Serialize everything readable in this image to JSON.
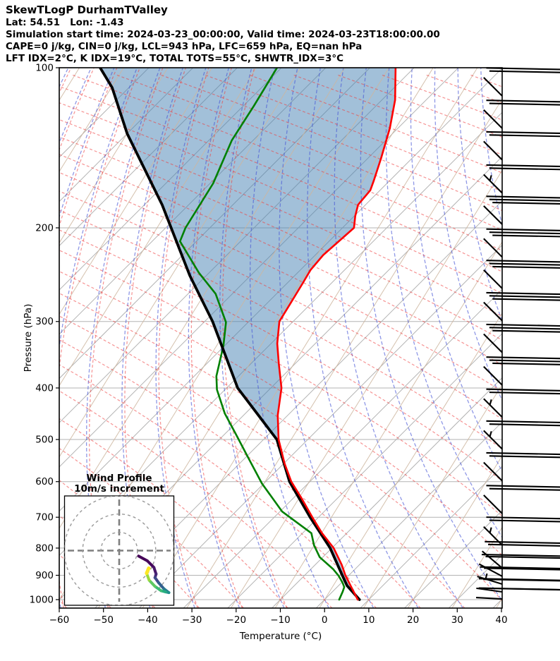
{
  "header": {
    "title": "SkewTLogP DurhamTValley",
    "latlon": "Lat: 54.51   Lon: -1.43",
    "time_line": "Simulation start time: 2024-03-23_00:00:00, Valid time: 2024-03-23T18:00:00.00",
    "indices_line1": "CAPE=0 j/kg, CIN=0 j/kg, LCL=943 hPa, LFC=659 hPa, EQ=nan hPa",
    "indices_line2": "LFT IDX=2°C, K IDX=19°C, TOTAL TOTS=55°C, SHWTR_IDX=3°C"
  },
  "chart_data": {
    "type": "line",
    "subtype": "skewT-logP",
    "xlabel": "Temperature (°C)",
    "ylabel": "Pressure (hPa)",
    "xlim": [
      -60,
      40
    ],
    "ylim_hpa": [
      100,
      1043
    ],
    "xticks": [
      -60,
      -50,
      -40,
      -30,
      -20,
      -10,
      0,
      10,
      20,
      30,
      40
    ],
    "xtick_labels": [
      "−60",
      "−50",
      "−40",
      "−30",
      "−20",
      "−10",
      "0",
      "10",
      "20",
      "30",
      "40"
    ],
    "yticks": [
      100,
      200,
      300,
      400,
      500,
      600,
      700,
      800,
      900,
      1000
    ],
    "ytick_labels": [
      "100",
      "200",
      "300",
      "400",
      "500",
      "600",
      "700",
      "800",
      "900",
      "1000"
    ],
    "grid": "skewed isotherms + dry adiabats + moist adiabats + mixing lines",
    "colors": {
      "temperature": "#ff0000",
      "dewpoint": "#008000",
      "parcel": "#000000",
      "fill_between": "rgba(70,130,180,0.5)",
      "isotherms": "#b3b3b3",
      "dry_adiabats": "#4553d6",
      "moist_adiabats": "#ef3b3b",
      "mixing_lines": "#cdb69f"
    },
    "series": [
      {
        "name": "temperature",
        "units": [
          "hPa",
          "degC"
        ],
        "points": [
          [
            100,
            -104.2
          ],
          [
            115,
            -97.0
          ],
          [
            130,
            -91.8
          ],
          [
            148,
            -87.0
          ],
          [
            163,
            -83.6
          ],
          [
            170,
            -82.2
          ],
          [
            181,
            -81.7
          ],
          [
            190,
            -79.8
          ],
          [
            200,
            -77.4
          ],
          [
            212,
            -77.8
          ],
          [
            225,
            -78.2
          ],
          [
            240,
            -77.7
          ],
          [
            255,
            -76.4
          ],
          [
            280,
            -74.5
          ],
          [
            300,
            -73.1
          ],
          [
            330,
            -68.6
          ],
          [
            360,
            -63.7
          ],
          [
            400,
            -57.6
          ],
          [
            450,
            -52.3
          ],
          [
            500,
            -46.6
          ],
          [
            555,
            -39.8
          ],
          [
            600,
            -34.2
          ],
          [
            645,
            -28.1
          ],
          [
            700,
            -21.4
          ],
          [
            750,
            -15.6
          ],
          [
            800,
            -9.6
          ],
          [
            860,
            -4.0
          ],
          [
            900,
            -0.8
          ],
          [
            941,
            2.7
          ],
          [
            1000,
            7.5
          ]
        ]
      },
      {
        "name": "dewpoint",
        "units": [
          "hPa",
          "degC"
        ],
        "points": [
          [
            100,
            -131.0
          ],
          [
            118,
            -127.6
          ],
          [
            137,
            -124.8
          ],
          [
            165,
            -119.3
          ],
          [
            200,
            -115.5
          ],
          [
            212,
            -113.7
          ],
          [
            243,
            -102.3
          ],
          [
            266,
            -93.8
          ],
          [
            301,
            -85.0
          ],
          [
            333,
            -80.3
          ],
          [
            380,
            -75.0
          ],
          [
            403,
            -71.8
          ],
          [
            447,
            -64.6
          ],
          [
            489,
            -57.4
          ],
          [
            540,
            -49.5
          ],
          [
            605,
            -40.4
          ],
          [
            683,
            -29.5
          ],
          [
            750,
            -18.0
          ],
          [
            790,
            -14.7
          ],
          [
            832,
            -10.7
          ],
          [
            876,
            -5.0
          ],
          [
            903,
            -2.1
          ],
          [
            930,
            0.3
          ],
          [
            947,
            1.6
          ],
          [
            966,
            2.3
          ],
          [
            1000,
            3.3
          ]
        ]
      },
      {
        "name": "parcel",
        "units": [
          "hPa",
          "degC"
        ],
        "points": [
          [
            100,
            -171.0
          ],
          [
            109,
            -163.8
          ],
          [
            133,
            -150.0
          ],
          [
            181,
            -126.0
          ],
          [
            246,
            -103.7
          ],
          [
            300,
            -88.2
          ],
          [
            400,
            -67.5
          ],
          [
            500,
            -47.0
          ],
          [
            600,
            -34.6
          ],
          [
            700,
            -21.9
          ],
          [
            800,
            -10.4
          ],
          [
            900,
            -1.5
          ],
          [
            941,
            1.9
          ],
          [
            1000,
            7.9
          ]
        ]
      }
    ],
    "fill_between": {
      "between": [
        "parcel",
        "temperature"
      ],
      "close_point": [
        962,
        4.8
      ]
    },
    "wind_barbs": [
      {
        "p": 113,
        "full": 2,
        "half": 0,
        "angle": 45
      },
      {
        "p": 130,
        "full": 2,
        "half": 0,
        "angle": 45
      },
      {
        "p": 149,
        "full": 2,
        "half": 0,
        "angle": 45
      },
      {
        "p": 172,
        "full": 2,
        "half": 1,
        "angle": 45
      },
      {
        "p": 197,
        "full": 3,
        "half": 0,
        "angle": 45
      },
      {
        "p": 227,
        "full": 3,
        "half": 0,
        "angle": 45
      },
      {
        "p": 260,
        "full": 3,
        "half": 0,
        "angle": 45
      },
      {
        "p": 299,
        "full": 3,
        "half": 0,
        "angle": 45
      },
      {
        "p": 343,
        "full": 3,
        "half": 0,
        "angle": 45
      },
      {
        "p": 395,
        "full": 3,
        "half": 0,
        "angle": 45
      },
      {
        "p": 454,
        "full": 2,
        "half": 1,
        "angle": 45
      },
      {
        "p": 521,
        "full": 2,
        "half": 1,
        "angle": 45
      },
      {
        "p": 598,
        "full": 2,
        "half": 0,
        "angle": 45
      },
      {
        "p": 689,
        "full": 2,
        "half": 0,
        "angle": 45
      },
      {
        "p": 790,
        "full": 2,
        "half": 1,
        "angle": 45
      },
      {
        "p": 872,
        "full": 2,
        "half": 0,
        "angle": 40
      },
      {
        "p": 904,
        "full": 2,
        "half": 0,
        "angle": 28
      },
      {
        "p": 935,
        "full": 2,
        "half": 1,
        "angle": 17
      },
      {
        "p": 967,
        "full": 2,
        "half": 0,
        "angle": 8
      },
      {
        "p": 997,
        "full": 2,
        "half": 0,
        "angle": 3
      }
    ],
    "hodograph": {
      "title_line1": "Wind Profile",
      "title_line2": "10m/s increment",
      "rings_m_s": [
        10,
        20,
        30
      ],
      "trace_uv": [
        [
          10.6,
          -3.0
        ],
        [
          15.4,
          -5.6
        ],
        [
          19.0,
          -9.2
        ],
        [
          20.2,
          -12.8
        ],
        [
          19.6,
          -14.8
        ],
        [
          21.6,
          -17.6
        ],
        [
          24.6,
          -21.0
        ],
        [
          27.2,
          -23.0
        ],
        [
          25.4,
          -22.6
        ],
        [
          23.0,
          -22.0
        ],
        [
          19.6,
          -19.6
        ],
        [
          16.4,
          -16.2
        ],
        [
          15.0,
          -12.4
        ],
        [
          16.2,
          -9.6
        ]
      ],
      "trace_colors": [
        "#450457",
        "#46085c",
        "#471769",
        "#462878",
        "#3e4a89",
        "#32608e",
        "#28798e",
        "#21918c",
        "#27ad81",
        "#3dbc74",
        "#5ec962",
        "#9bd93c",
        "#fde725"
      ]
    }
  }
}
